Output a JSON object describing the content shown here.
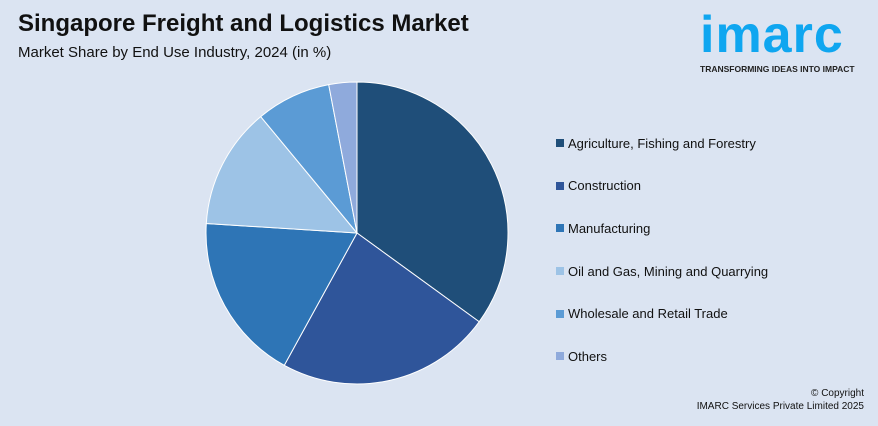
{
  "title": "Singapore Freight and Logistics Market",
  "subtitle": "Market Share by End Use Industry, 2024 (in %)",
  "logo": {
    "brand": "imarc",
    "tagline": "TRANSFORMING IDEAS INTO IMPACT"
  },
  "copyright": {
    "line1": "© Copyright",
    "line2": "IMARC Services Private Limited 2025"
  },
  "chart_data": {
    "type": "pie",
    "title": "Singapore Freight and Logistics Market",
    "subtitle": "Market Share by End Use Industry, 2024 (in %)",
    "legend_position": "right",
    "categories": [
      "Agriculture, Fishing and Forestry",
      "Construction",
      "Manufacturing",
      "Oil and Gas, Mining and Quarrying",
      "Wholesale and Retail Trade",
      "Others"
    ],
    "values": [
      35,
      23,
      18,
      13,
      8,
      3
    ],
    "colors": [
      "#1f4e79",
      "#2f559a",
      "#2e75b6",
      "#9dc3e6",
      "#5b9bd5",
      "#8faadc"
    ]
  }
}
